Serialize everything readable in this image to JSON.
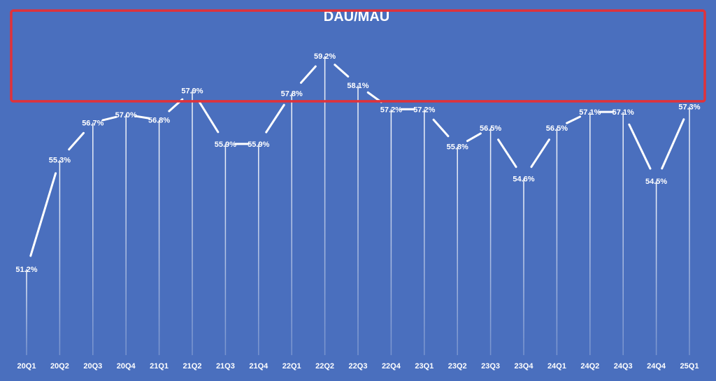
{
  "chart_data": {
    "type": "line",
    "title": "DAU/MAU",
    "xlabel": "",
    "ylabel": "",
    "categories": [
      "20Q1",
      "20Q2",
      "20Q3",
      "20Q4",
      "21Q1",
      "21Q2",
      "21Q3",
      "21Q4",
      "22Q1",
      "22Q2",
      "22Q3",
      "22Q4",
      "23Q1",
      "23Q2",
      "23Q3",
      "23Q4",
      "24Q1",
      "24Q2",
      "24Q3",
      "24Q4",
      "25Q1"
    ],
    "values": [
      51.2,
      55.3,
      56.7,
      57.0,
      56.8,
      57.9,
      55.9,
      55.9,
      57.8,
      59.2,
      58.1,
      57.2,
      57.2,
      55.8,
      56.5,
      54.6,
      56.5,
      57.1,
      57.1,
      54.5,
      57.3
    ],
    "labels": [
      "51.2%",
      "55.3%",
      "56.7%",
      "57.0%",
      "56.8%",
      "57.9%",
      "55.9%",
      "55.9%",
      "57.8%",
      "59.2%",
      "58.1%",
      "57.2%",
      "57.2%",
      "55.8%",
      "56.5%",
      "54.6%",
      "56.5%",
      "57.1%",
      "57.1%",
      "54.5%",
      "57.3%"
    ],
    "unit": "%",
    "ylim": [
      47.4,
      59.2
    ],
    "grid": false,
    "legend": "none",
    "drop_lines": true,
    "highlight_box": {
      "from": 57.5,
      "to": 60.9,
      "color": "#e0323a"
    },
    "colors": {
      "background": "#4a6fbe",
      "line": "#ffffff",
      "text": "#ffffff"
    }
  }
}
